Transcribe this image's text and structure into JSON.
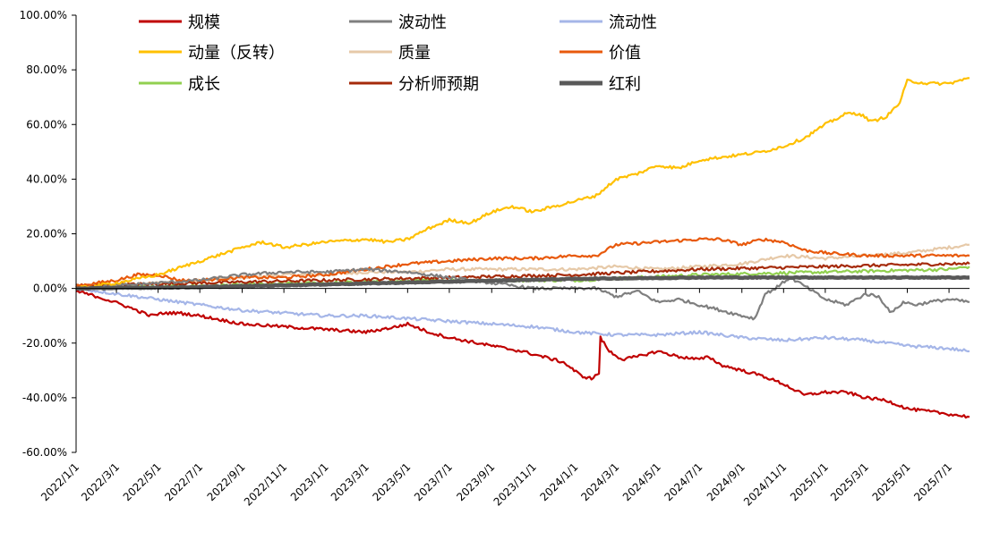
{
  "chart_data": {
    "type": "line",
    "title": "",
    "xlabel": "",
    "ylabel": "",
    "ylim": [
      -60,
      100
    ],
    "y_ticks": [
      100,
      80,
      60,
      40,
      20,
      0,
      -20,
      -40,
      -60
    ],
    "y_tick_labels": [
      "100.00%",
      "80.00%",
      "60.00%",
      "40.00%",
      "20.00%",
      "0.00%",
      "-20.00%",
      "-40.00%",
      "-60.00%"
    ],
    "x_range": [
      "2022-01-01",
      "2025-07-31"
    ],
    "x_ticks": [
      "2022-01-01",
      "2022-03-01",
      "2022-05-01",
      "2022-07-01",
      "2022-09-01",
      "2022-11-01",
      "2023-01-01",
      "2023-03-01",
      "2023-05-01",
      "2023-07-01",
      "2023-09-01",
      "2023-11-01",
      "2024-01-01",
      "2024-03-01",
      "2024-05-01",
      "2024-07-01",
      "2024-09-01",
      "2024-11-01",
      "2025-01-01",
      "2025-03-01",
      "2025-05-01",
      "2025-07-01"
    ],
    "x_tick_labels": [
      "2022/1/1",
      "2022/3/1",
      "2022/5/1",
      "2022/7/1",
      "2022/9/1",
      "2022/11/1",
      "2023/1/1",
      "2023/3/1",
      "2023/5/1",
      "2023/7/1",
      "2023/9/1",
      "2023/11/1",
      "2024/1/1",
      "2024/3/1",
      "2024/5/1",
      "2024/7/1",
      "2024/9/1",
      "2024/11/1",
      "2025/1/1",
      "2025/3/1",
      "2025/5/1",
      "2025/7/1"
    ],
    "grid": false,
    "legend_position": "top",
    "series": [
      {
        "name": "规模",
        "color": "#C00000",
        "x": [
          "2022-01-01",
          "2022-02-01",
          "2022-03-10",
          "2022-04-20",
          "2022-05-10",
          "2022-06-01",
          "2022-07-01",
          "2022-09-01",
          "2022-11-01",
          "2023-01-01",
          "2023-03-01",
          "2023-04-15",
          "2023-05-01",
          "2023-06-01",
          "2023-07-01",
          "2023-09-01",
          "2023-10-15",
          "2023-11-15",
          "2023-12-15",
          "2024-01-10",
          "2024-01-25",
          "2024-02-05",
          "2024-02-07",
          "2024-02-20",
          "2024-03-10",
          "2024-04-01",
          "2024-04-15",
          "2024-05-01",
          "2024-06-01",
          "2024-07-01",
          "2024-07-15",
          "2024-08-01",
          "2024-09-01",
          "2024-10-01",
          "2024-11-01",
          "2024-12-01",
          "2025-01-01",
          "2025-02-01",
          "2025-03-01",
          "2025-04-01",
          "2025-05-01",
          "2025-06-01",
          "2025-07-01",
          "2025-07-31"
        ],
        "y": [
          -1,
          -3,
          -6,
          -10,
          -9,
          -9,
          -10,
          -13,
          -14,
          -15,
          -16,
          -14,
          -13,
          -16,
          -18,
          -21,
          -23,
          -25,
          -27,
          -32,
          -33,
          -31,
          -18,
          -23,
          -26,
          -25,
          -24,
          -23,
          -25,
          -26,
          -25,
          -28,
          -30,
          -32,
          -35,
          -39,
          -38,
          -38,
          -40,
          -41,
          -44,
          -45,
          -46,
          -47
        ]
      },
      {
        "name": "波动性",
        "color": "#7F7F7F",
        "x": [
          "2022-01-01",
          "2022-03-01",
          "2022-05-01",
          "2022-07-01",
          "2022-09-01",
          "2022-11-01",
          "2023-01-01",
          "2023-03-01",
          "2023-05-01",
          "2023-07-01",
          "2023-09-01",
          "2023-11-01",
          "2024-01-01",
          "2024-02-01",
          "2024-03-01",
          "2024-04-01",
          "2024-05-01",
          "2024-06-01",
          "2024-07-01",
          "2024-08-01",
          "2024-09-01",
          "2024-09-20",
          "2024-10-05",
          "2024-10-20",
          "2024-11-10",
          "2024-12-01",
          "2025-01-01",
          "2025-02-01",
          "2025-03-01",
          "2025-03-20",
          "2025-04-08",
          "2025-04-25",
          "2025-05-15",
          "2025-06-01",
          "2025-07-01",
          "2025-07-31"
        ],
        "y": [
          0,
          1,
          2,
          3,
          5,
          6,
          6,
          7,
          6,
          4,
          2,
          0,
          0,
          0,
          -3,
          -1,
          -5,
          -4,
          -6,
          -8,
          -10,
          -11,
          -2,
          0,
          4,
          1,
          -4,
          -6,
          -2,
          -3,
          -9,
          -5,
          -6,
          -5,
          -4,
          -5
        ]
      },
      {
        "name": "流动性",
        "color": "#A5B6E8",
        "x": [
          "2022-01-01",
          "2022-02-01",
          "2022-03-01",
          "2022-05-01",
          "2022-07-01",
          "2022-09-01",
          "2022-11-01",
          "2023-01-01",
          "2023-03-01",
          "2023-05-01",
          "2023-07-01",
          "2023-09-01",
          "2023-11-01",
          "2024-01-01",
          "2024-03-01",
          "2024-05-01",
          "2024-07-01",
          "2024-09-01",
          "2024-11-01",
          "2025-01-01",
          "2025-03-01",
          "2025-05-01",
          "2025-07-01",
          "2025-07-31"
        ],
        "y": [
          0,
          -1,
          -2,
          -4,
          -6,
          -8,
          -9,
          -10,
          -10,
          -11,
          -12,
          -13,
          -14,
          -16,
          -17,
          -17,
          -16,
          -18,
          -19,
          -18,
          -19,
          -21,
          -22,
          -23
        ]
      },
      {
        "name": "动量（反转）",
        "color": "#FFC000",
        "x": [
          "2022-01-01",
          "2022-03-01",
          "2022-05-01",
          "2022-07-01",
          "2022-09-01",
          "2022-10-01",
          "2022-11-01",
          "2022-12-01",
          "2023-01-01",
          "2023-03-01",
          "2023-04-01",
          "2023-05-01",
          "2023-06-01",
          "2023-07-01",
          "2023-08-01",
          "2023-09-01",
          "2023-10-01",
          "2023-11-01",
          "2023-12-01",
          "2024-01-01",
          "2024-02-01",
          "2024-03-01",
          "2024-04-01",
          "2024-05-01",
          "2024-06-01",
          "2024-07-01",
          "2024-08-01",
          "2024-09-01",
          "2024-10-01",
          "2024-11-01",
          "2024-12-01",
          "2025-01-01",
          "2025-02-01",
          "2025-02-20",
          "2025-03-10",
          "2025-04-01",
          "2025-04-20",
          "2025-05-01",
          "2025-06-01",
          "2025-07-01",
          "2025-07-31"
        ],
        "y": [
          0,
          2,
          5,
          10,
          15,
          17,
          15,
          16,
          17,
          18,
          17,
          18,
          22,
          25,
          24,
          28,
          30,
          28,
          30,
          32,
          34,
          40,
          42,
          45,
          44,
          47,
          48,
          49,
          50,
          52,
          55,
          60,
          64,
          64,
          61,
          63,
          68,
          76,
          75,
          75,
          77
        ]
      },
      {
        "name": "质量",
        "color": "#E6C9A8",
        "x": [
          "2022-01-01",
          "2022-03-01",
          "2022-05-01",
          "2022-07-01",
          "2022-09-01",
          "2022-11-01",
          "2023-01-01",
          "2023-03-01",
          "2023-05-01",
          "2023-07-01",
          "2023-09-01",
          "2023-11-01",
          "2024-01-01",
          "2024-03-01",
          "2024-05-01",
          "2024-07-01",
          "2024-09-01",
          "2024-11-01",
          "2025-01-01",
          "2025-03-01",
          "2025-05-01",
          "2025-07-01",
          "2025-07-31"
        ],
        "y": [
          0,
          1,
          2,
          3,
          4,
          5,
          5,
          6,
          6,
          7,
          7,
          7,
          7,
          8,
          7,
          8,
          9,
          12,
          11,
          12,
          13,
          15,
          16
        ]
      },
      {
        "name": "价值",
        "color": "#E8590C",
        "x": [
          "2022-01-01",
          "2022-02-01",
          "2022-03-01",
          "2022-04-01",
          "2022-05-01",
          "2022-06-01",
          "2022-07-01",
          "2022-09-01",
          "2022-11-01",
          "2023-01-01",
          "2023-03-01",
          "2023-05-01",
          "2023-07-01",
          "2023-09-01",
          "2023-11-01",
          "2024-01-01",
          "2024-02-01",
          "2024-03-01",
          "2024-05-01",
          "2024-07-01",
          "2024-08-01",
          "2024-09-01",
          "2024-10-01",
          "2024-11-01",
          "2024-12-01",
          "2025-01-01",
          "2025-03-01",
          "2025-05-01",
          "2025-07-01",
          "2025-07-31"
        ],
        "y": [
          1,
          2,
          3,
          5,
          5,
          3,
          3,
          4,
          4,
          5,
          7,
          9,
          10,
          11,
          11,
          12,
          12,
          16,
          17,
          18,
          18,
          16,
          18,
          17,
          14,
          13,
          12,
          12,
          12,
          12
        ]
      },
      {
        "name": "成长",
        "color": "#92D050",
        "x": [
          "2022-01-01",
          "2022-07-01",
          "2023-01-01",
          "2023-07-01",
          "2024-01-01",
          "2024-07-01",
          "2025-01-01",
          "2025-07-01",
          "2025-07-31"
        ],
        "y": [
          0,
          1,
          2,
          3,
          3,
          5,
          6,
          7,
          8
        ]
      },
      {
        "name": "分析师预期",
        "color": "#A52A0A",
        "x": [
          "2022-01-01",
          "2022-07-01",
          "2023-01-01",
          "2023-07-01",
          "2024-01-01",
          "2024-07-01",
          "2025-01-01",
          "2025-07-01",
          "2025-07-31"
        ],
        "y": [
          1,
          2,
          3,
          4,
          5,
          7,
          8,
          9,
          9
        ]
      },
      {
        "name": "红利",
        "color": "#595959",
        "x": [
          "2022-01-01",
          "2022-07-01",
          "2023-01-01",
          "2023-07-01",
          "2024-01-01",
          "2024-07-01",
          "2025-01-01",
          "2025-07-01",
          "2025-07-31"
        ],
        "y": [
          0,
          0.5,
          1.5,
          2.5,
          3.5,
          4,
          4,
          4,
          4
        ]
      }
    ]
  }
}
